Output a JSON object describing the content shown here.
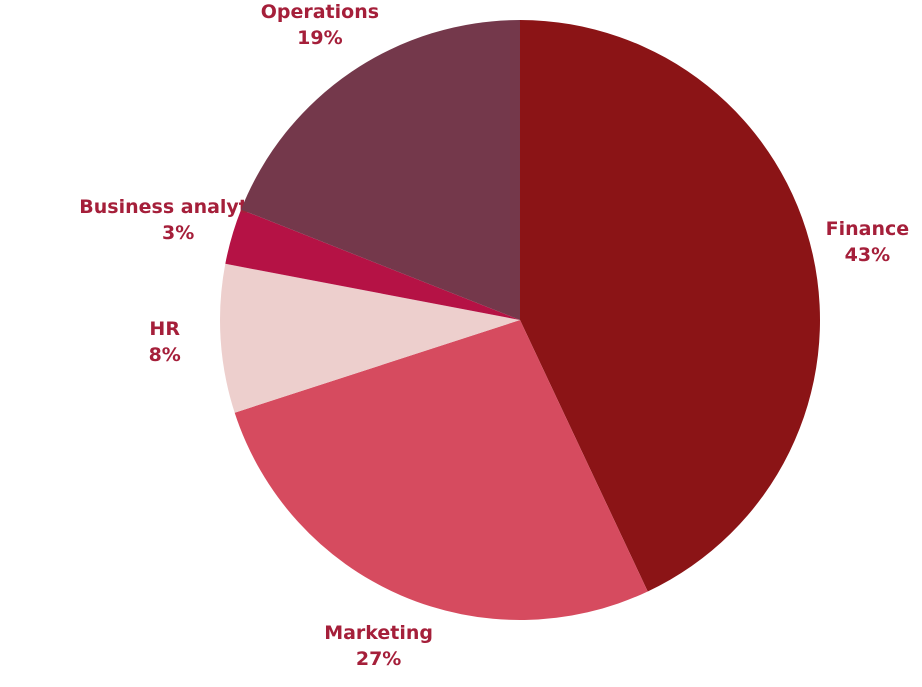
{
  "chart_data": {
    "type": "pie",
    "categories": [
      "Finance",
      "Marketing",
      "HR",
      "Business analytics",
      "Operations"
    ],
    "values": [
      43,
      27,
      8,
      3,
      19
    ],
    "value_labels": [
      "43%",
      "27%",
      "8%",
      "3%",
      "19%"
    ],
    "colors": [
      "#8b1416",
      "#d64b5f",
      "#edcfcd",
      "#b51245",
      "#74384b"
    ]
  }
}
